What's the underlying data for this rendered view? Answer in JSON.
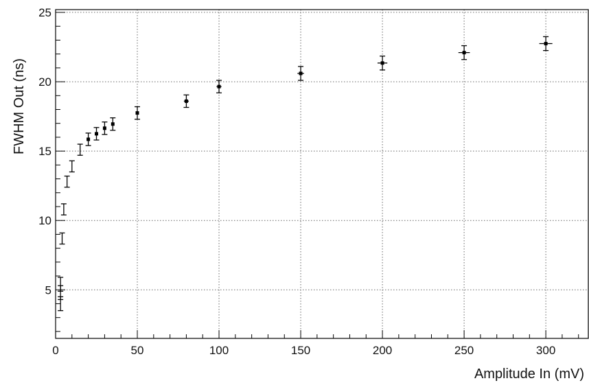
{
  "chart_data": {
    "type": "scatter",
    "title": "",
    "xlabel": "Amplitude In (mV)",
    "ylabel": "FWHM Out (ns)",
    "xlim": [
      0,
      326
    ],
    "ylim": [
      1.5,
      25.2
    ],
    "x_ticks": [
      0,
      50,
      100,
      150,
      200,
      250,
      300
    ],
    "y_ticks": [
      5,
      10,
      15,
      20,
      25
    ],
    "grid": "dotted",
    "marker_color": "#000000",
    "series": [
      {
        "points": [
          {
            "x": 3,
            "y": 4.0,
            "yerr": 0.5
          },
          {
            "x": 3,
            "y": 4.8,
            "yerr": 0.5
          },
          {
            "x": 3,
            "y": 5.4,
            "yerr": 0.5
          },
          {
            "x": 4,
            "y": 8.7,
            "yerr": 0.4
          },
          {
            "x": 5,
            "y": 10.8,
            "yerr": 0.4
          },
          {
            "x": 7,
            "y": 12.8,
            "yerr": 0.4
          },
          {
            "x": 10,
            "y": 13.9,
            "yerr": 0.4
          },
          {
            "x": 15,
            "y": 15.1,
            "yerr": 0.4
          },
          {
            "x": 20,
            "y": 15.85,
            "yerr": 0.45
          },
          {
            "x": 25,
            "y": 16.25,
            "yerr": 0.45
          },
          {
            "x": 30,
            "y": 16.65,
            "yerr": 0.45
          },
          {
            "x": 35,
            "y": 16.95,
            "yerr": 0.45
          },
          {
            "x": 50,
            "y": 17.75,
            "yerr": 0.45,
            "xerr": 1.0
          },
          {
            "x": 80,
            "y": 18.6,
            "yerr": 0.45,
            "xerr": 1.5
          },
          {
            "x": 100,
            "y": 19.65,
            "yerr": 0.45,
            "xerr": 1.5
          },
          {
            "x": 150,
            "y": 20.6,
            "yerr": 0.5,
            "xerr": 2.0
          },
          {
            "x": 200,
            "y": 21.35,
            "yerr": 0.5,
            "xerr": 3.0
          },
          {
            "x": 250,
            "y": 22.1,
            "yerr": 0.5,
            "xerr": 3.5
          },
          {
            "x": 300,
            "y": 22.75,
            "yerr": 0.5,
            "xerr": 4.0
          }
        ]
      }
    ]
  }
}
